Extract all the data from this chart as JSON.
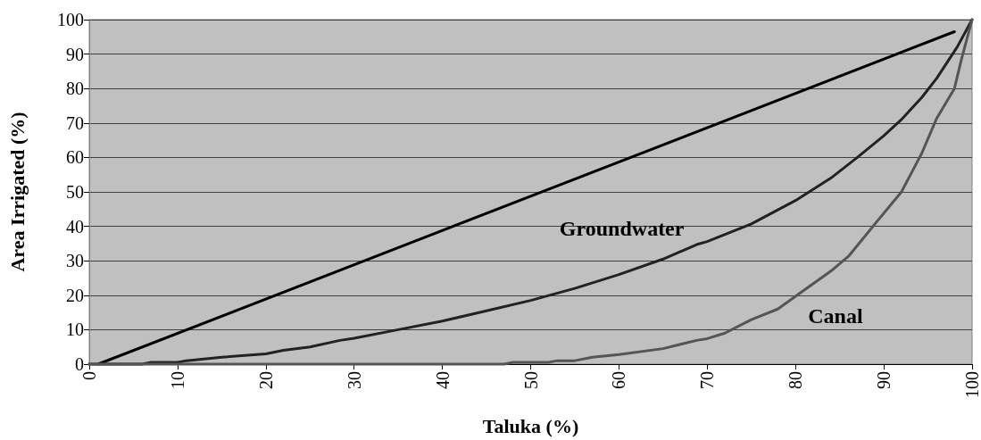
{
  "chart_data": {
    "type": "line",
    "xlabel": "Taluka (%)",
    "ylabel": "Area Irrigated (%)",
    "xlim": [
      0,
      100
    ],
    "xticks": [
      0,
      10,
      20,
      30,
      40,
      50,
      60,
      70,
      80,
      90,
      100
    ],
    "ylim": [
      0,
      100
    ],
    "yticks": [
      0,
      10,
      20,
      30,
      40,
      50,
      60,
      70,
      80,
      90,
      100
    ],
    "grid": "y",
    "marker": "none",
    "line_style": "solid",
    "series": [
      {
        "color": "#000000",
        "x": [
          1,
          98
        ],
        "values": [
          0,
          96.5
        ]
      },
      {
        "name": "Groundwater",
        "color": "#222222",
        "x": [
          0,
          6,
          7,
          10,
          11,
          15,
          20,
          22,
          25,
          28.4,
          30,
          35,
          40,
          45,
          50,
          55,
          60,
          65,
          68.8,
          70,
          75,
          80,
          84,
          87,
          90,
          92,
          94.3,
          96,
          98.3,
          100
        ],
        "values": [
          0,
          0,
          0.5,
          0.5,
          1,
          2,
          3,
          4,
          5,
          6.9,
          7.5,
          10,
          12.5,
          15.5,
          18.5,
          22,
          26,
          30.5,
          34.7,
          35.6,
          40.7,
          47.5,
          54,
          60,
          66.3,
          71,
          77.4,
          83,
          92,
          100
        ]
      },
      {
        "name": "Canal",
        "color": "#555555",
        "x": [
          0,
          47,
          48,
          52,
          53,
          55,
          57,
          60,
          65,
          68.8,
          70,
          72,
          75,
          78,
          80,
          84,
          86,
          89,
          92,
          94.3,
          96,
          98,
          98.8,
          100
        ],
        "values": [
          0,
          0,
          0.5,
          0.5,
          1,
          1,
          2,
          2.8,
          4.5,
          6.9,
          7.4,
          9,
          12.9,
          16,
          19.7,
          27,
          31.3,
          40.7,
          50,
          61.2,
          71.4,
          80,
          88.5,
          100
        ]
      }
    ]
  }
}
